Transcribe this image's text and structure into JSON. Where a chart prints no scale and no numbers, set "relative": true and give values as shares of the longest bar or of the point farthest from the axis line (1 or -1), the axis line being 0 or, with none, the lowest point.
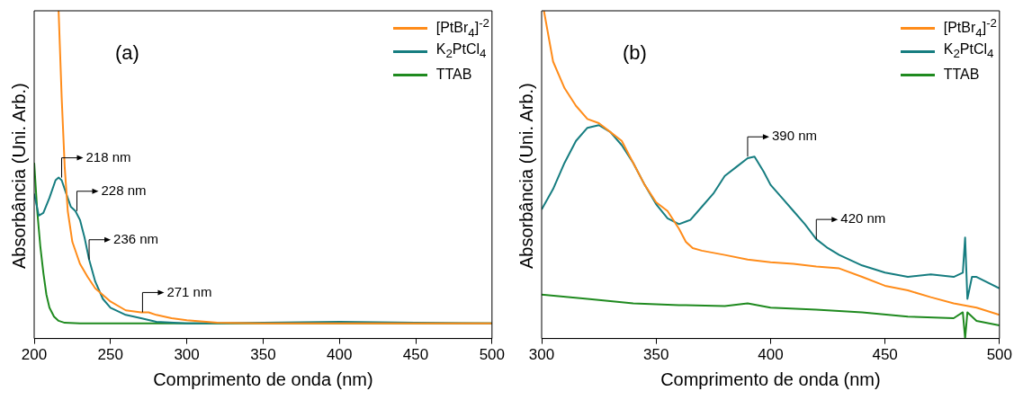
{
  "chart_data": [
    {
      "type": "line",
      "title": "(a)",
      "xlabel": "Comprimento de onda (nm)",
      "ylabel": "Absorbância (Uni. Arb.)",
      "relative": true,
      "grid": false,
      "legend": "top right",
      "xlim": [
        200,
        500
      ],
      "xticks": [
        200,
        250,
        300,
        350,
        400,
        450,
        500
      ],
      "series": [
        {
          "name": "[PtBr$_{4}$]$^{-2}$",
          "color": "#ff8c1a",
          "x": [
            216,
            218,
            220,
            222,
            225,
            230,
            235,
            240,
            250,
            260,
            270,
            275,
            280,
            290,
            300,
            320,
            350,
            400,
            450,
            500
          ],
          "values": [
            1.0,
            0.737,
            0.523,
            0.389,
            0.295,
            0.228,
            0.188,
            0.153,
            0.113,
            0.086,
            0.08,
            0.08,
            0.072,
            0.062,
            0.056,
            0.048,
            0.046,
            0.046,
            0.046,
            0.046
          ]
        },
        {
          "name": "K$_{2}$PtCl$_{4}$",
          "color": "#167d80",
          "x": [
            200,
            203,
            206,
            210,
            214,
            216,
            218,
            221,
            224,
            227,
            230,
            233,
            236,
            240,
            245,
            250,
            260,
            270,
            280,
            300,
            350,
            400,
            450,
            500
          ],
          "values": [
            0.442,
            0.375,
            0.383,
            0.429,
            0.483,
            0.491,
            0.483,
            0.442,
            0.402,
            0.389,
            0.362,
            0.308,
            0.241,
            0.174,
            0.121,
            0.094,
            0.072,
            0.062,
            0.051,
            0.046,
            0.048,
            0.051,
            0.048,
            0.046
          ]
        },
        {
          "name": "TTAB",
          "color": "#1f8a1f",
          "x": [
            200,
            202,
            204,
            206,
            208,
            210,
            213,
            216,
            220,
            230,
            300,
            400,
            500
          ],
          "values": [
            0.536,
            0.389,
            0.282,
            0.201,
            0.134,
            0.094,
            0.067,
            0.054,
            0.048,
            0.046,
            0.046,
            0.046,
            0.046
          ]
        }
      ],
      "annotations": [
        {
          "text": "218 nm",
          "x": 218,
          "y": 0.491
        },
        {
          "text": "228 nm",
          "x": 228,
          "y": 0.389
        },
        {
          "text": "236 nm",
          "x": 236,
          "y": 0.241
        },
        {
          "text": "271 nm",
          "x": 271,
          "y": 0.08
        }
      ]
    },
    {
      "type": "line",
      "title": "(b)",
      "xlabel": "Comprimento de onda (nm)",
      "ylabel": "Absorbância (Uni. Arb.)",
      "relative": true,
      "grid": false,
      "legend": "top right",
      "xlim": [
        300,
        500
      ],
      "xticks": [
        300,
        350,
        400,
        450,
        500
      ],
      "series": [
        {
          "name": "[PtBr$_{4}$]$^{-2}$",
          "color": "#ff8c1a",
          "x": [
            301,
            305,
            310,
            315,
            320,
            325,
            330,
            335,
            340,
            345,
            350,
            355,
            360,
            363,
            366,
            370,
            380,
            390,
            400,
            410,
            420,
            430,
            440,
            450,
            460,
            470,
            480,
            490,
            500
          ],
          "values": [
            1.0,
            0.845,
            0.764,
            0.71,
            0.67,
            0.657,
            0.63,
            0.603,
            0.536,
            0.469,
            0.416,
            0.389,
            0.335,
            0.295,
            0.276,
            0.268,
            0.255,
            0.241,
            0.233,
            0.228,
            0.22,
            0.214,
            0.188,
            0.161,
            0.147,
            0.126,
            0.107,
            0.094,
            0.072
          ]
        },
        {
          "name": "K$_{2}$PtCl$_{4}$",
          "color": "#167d80",
          "x": [
            300,
            305,
            310,
            315,
            320,
            325,
            330,
            335,
            340,
            345,
            350,
            355,
            360,
            365,
            370,
            375,
            380,
            385,
            390,
            393,
            397,
            400,
            405,
            410,
            415,
            420,
            425,
            430,
            440,
            450,
            460,
            470,
            480,
            484,
            485,
            486,
            488,
            490,
            500
          ],
          "values": [
            0.394,
            0.456,
            0.536,
            0.603,
            0.643,
            0.651,
            0.63,
            0.59,
            0.536,
            0.469,
            0.41,
            0.367,
            0.349,
            0.362,
            0.402,
            0.442,
            0.496,
            0.523,
            0.55,
            0.555,
            0.509,
            0.469,
            0.429,
            0.389,
            0.349,
            0.303,
            0.276,
            0.255,
            0.223,
            0.201,
            0.188,
            0.196,
            0.188,
            0.201,
            0.308,
            0.121,
            0.188,
            0.188,
            0.153
          ]
        },
        {
          "name": "TTAB",
          "color": "#1f8a1f",
          "x": [
            300,
            320,
            340,
            360,
            380,
            390,
            400,
            420,
            440,
            460,
            480,
            484,
            485,
            486,
            490,
            500
          ],
          "values": [
            0.134,
            0.121,
            0.107,
            0.102,
            0.099,
            0.107,
            0.094,
            0.088,
            0.08,
            0.067,
            0.062,
            0.08,
            0.0,
            0.08,
            0.054,
            0.04
          ]
        }
      ],
      "annotations": [
        {
          "text": "390 nm",
          "x": 390,
          "y": 0.555
        },
        {
          "text": "420 nm",
          "x": 420,
          "y": 0.303
        }
      ]
    }
  ]
}
